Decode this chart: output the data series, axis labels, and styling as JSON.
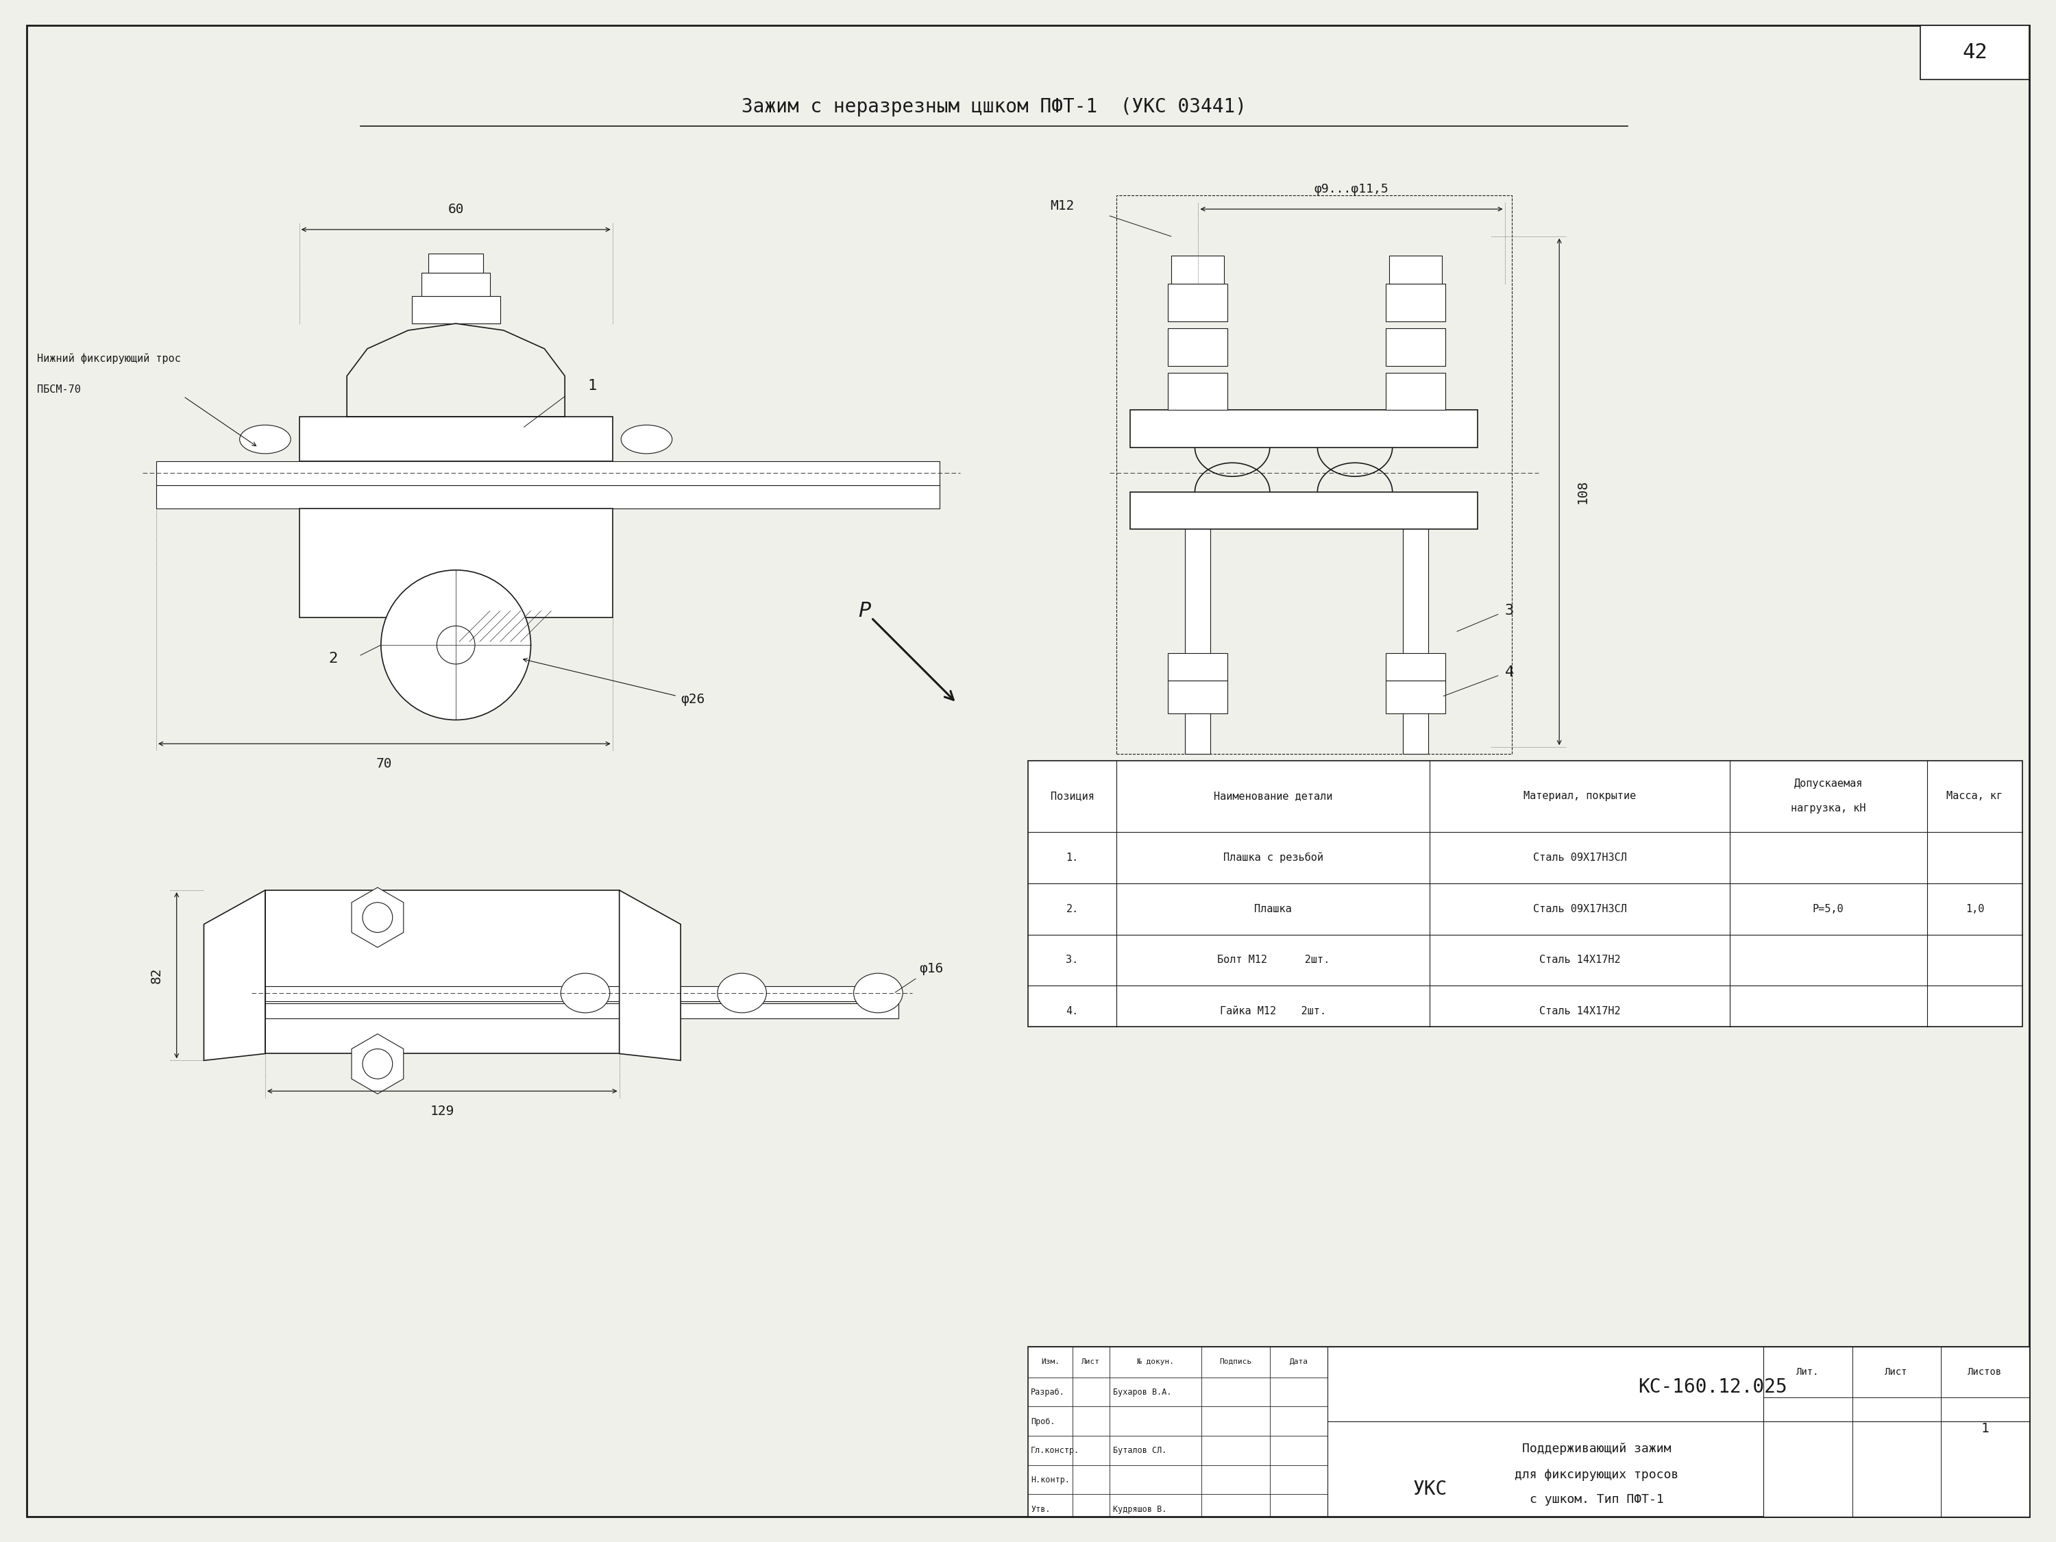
{
  "title": "Зажим с неразрезным цшком ПФТ-1  (УКС 03441)",
  "page_number": "42",
  "bg_color": "#f0f0eb",
  "line_color": "#1a1a1a",
  "table_data": {
    "headers": [
      "Позиция",
      "Наименование детали",
      "Материал, покрытие",
      "Допускаемая\nнагрузка, кН",
      "Масса, кг"
    ],
    "rows": [
      [
        "1.",
        "Плашка с резьбой",
        "Сталь 09Х17Н3СЛ",
        "",
        ""
      ],
      [
        "2.",
        "Плашка",
        "Сталь 09Х17Н3СЛ",
        "Р=5,0",
        "1,0"
      ],
      [
        "3.",
        "Болт М12      2шт.",
        "Сталь 14Х17Н2",
        "",
        ""
      ],
      [
        "4.",
        "Гайка М12    2шт.",
        "Сталь 14Х17Н2",
        "",
        ""
      ]
    ]
  },
  "title_block": {
    "doc_number": "КС-160.12.025",
    "description_line1": "Поддерживающий зажим",
    "description_line2": "для фиксирующих тросов",
    "description_line3": "с ушком. Тип ПФТ-1",
    "developer": "Бухаров В.А.",
    "gl_konstr": "Буталов СЛ.",
    "utv": "Кудряшов В.",
    "org": "УКС",
    "lit": "Лит.",
    "list": "Лист",
    "listov": "Листов",
    "listov_val": "1",
    "izm": "Изм.",
    "list_col": "Лист",
    "n_dokum": "№ докун.",
    "podpis": "Подпись",
    "data_col": "Дата",
    "razrab": "Разраб.",
    "prob": "Проб.",
    "n_kontr": "Н.контр.",
    "gl_konstr_label": "Гл.констр.",
    "utv_label": "Утв."
  },
  "dims": {
    "d60": "60",
    "d70": "70",
    "d26": "φ26",
    "d82": "82",
    "d129": "129",
    "d16": "φ16",
    "d108": "108",
    "d9_11": "φ9...φ11,5",
    "m12": "M12",
    "pos1": "1",
    "pos2": "2",
    "pos3": "3",
    "pos4": "4",
    "label_tros": "Нижний фиксирующий трос",
    "label_pbsm": "ПБСМ-70",
    "label_p": "Р"
  }
}
